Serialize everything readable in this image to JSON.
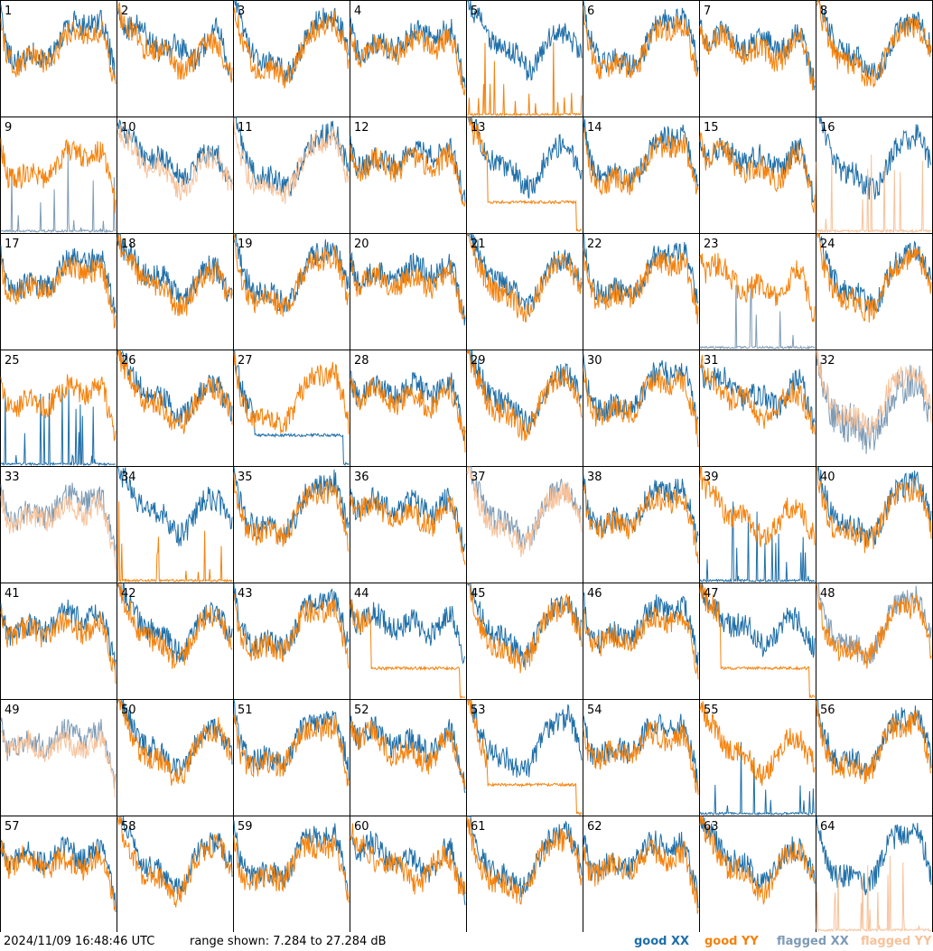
{
  "chart_data": {
    "type": "line",
    "panel_count": 64,
    "panel_labels": [
      "1",
      "2",
      "3",
      "4",
      "5",
      "6",
      "7",
      "8",
      "9",
      "10",
      "11",
      "12",
      "13",
      "14",
      "15",
      "16",
      "17",
      "18",
      "19",
      "20",
      "21",
      "22",
      "23",
      "24",
      "25",
      "26",
      "27",
      "28",
      "29",
      "30",
      "31",
      "32",
      "33",
      "34",
      "35",
      "36",
      "37",
      "38",
      "39",
      "40",
      "41",
      "42",
      "43",
      "44",
      "45",
      "46",
      "47",
      "48",
      "49",
      "50",
      "51",
      "52",
      "53",
      "54",
      "55",
      "56",
      "57",
      "58",
      "59",
      "60",
      "61",
      "62",
      "63",
      "64"
    ],
    "ylim": [
      7.284,
      27.284
    ],
    "y_unit": "dB",
    "series_order": [
      "xx",
      "yy"
    ],
    "series": [
      {
        "key": "good_xx",
        "name": "good XX",
        "color": "#1f6fa8"
      },
      {
        "key": "good_yy",
        "name": "good YY",
        "color": "#f5820d"
      },
      {
        "key": "flagged_xx",
        "name": "flagged XX",
        "color": "#7e9bb5"
      },
      {
        "key": "flagged_yy",
        "name": "flagged YY",
        "color": "#f7c29a"
      }
    ],
    "panel_styles": {
      "1": {
        "xx": "good",
        "yy": "good"
      },
      "5": {
        "xx": "good",
        "yy": "spiky"
      },
      "9": {
        "xx": "spiky_flagged",
        "yy": "good"
      },
      "10": {
        "xx": "good",
        "yy": "flagged"
      },
      "11": {
        "xx": "good",
        "yy": "flagged"
      },
      "13": {
        "xx": "good",
        "yy": "dropout"
      },
      "16": {
        "xx": "good",
        "yy": "spiky_flagged"
      },
      "23": {
        "xx": "spiky_flagged",
        "yy": "good"
      },
      "25": {
        "xx": "spiky",
        "yy": "good"
      },
      "27": {
        "xx": "dropout",
        "yy": "good"
      },
      "32": {
        "xx": "flagged_spiky",
        "yy": "flagged"
      },
      "33": {
        "xx": "flagged",
        "yy": "flagged"
      },
      "34": {
        "xx": "good",
        "yy": "spiky"
      },
      "37": {
        "xx": "flagged",
        "yy": "flagged"
      },
      "39": {
        "xx": "spiky",
        "yy": "good"
      },
      "44": {
        "xx": "good",
        "yy": "dropout"
      },
      "47": {
        "xx": "good",
        "yy": "dropout"
      },
      "48": {
        "xx": "flagged",
        "yy": "good"
      },
      "49": {
        "xx": "flagged",
        "yy": "flagged"
      },
      "53": {
        "xx": "good",
        "yy": "dropout"
      },
      "55": {
        "xx": "spiky",
        "yy": "good"
      },
      "64": {
        "xx": "good",
        "yy": "spiky_flagged"
      }
    }
  },
  "footer": {
    "timestamp": "2024/11/09 16:48:46 UTC",
    "range_text": "range shown: 7.284 to 27.284 dB",
    "legend": [
      {
        "label": "good XX",
        "color": "#1f6fa8"
      },
      {
        "label": "good YY",
        "color": "#f5820d"
      },
      {
        "label": "flagged XX",
        "color": "#7e9bb5"
      },
      {
        "label": "flagged YY",
        "color": "#f7c29a"
      }
    ]
  }
}
